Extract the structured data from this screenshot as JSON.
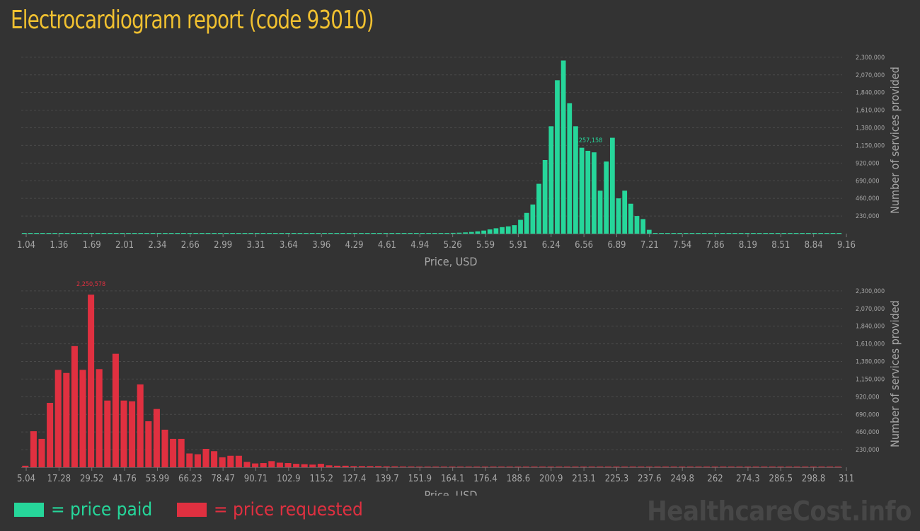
{
  "title": "Electrocardiogram report (code 93010)",
  "chart_data": [
    {
      "type": "bar",
      "color": "#26d69a",
      "xlabel": "Price, USD",
      "ylabel": "Number of services provided",
      "ylim": [
        0,
        2400000
      ],
      "y_ticks": [
        "230,000",
        "460,000",
        "690,000",
        "920,000",
        "1,150,000",
        "1,380,000",
        "1,610,000",
        "1,840,000",
        "2,070,000",
        "2,300,000"
      ],
      "x_ticks": [
        "1.04",
        "1.36",
        "1.69",
        "2.01",
        "2.34",
        "2.66",
        "2.99",
        "3.31",
        "3.64",
        "3.96",
        "4.29",
        "4.61",
        "4.94",
        "5.26",
        "5.59",
        "5.91",
        "6.24",
        "6.56",
        "6.89",
        "7.21",
        "7.54",
        "7.86",
        "8.19",
        "8.51",
        "8.84",
        "9.16"
      ],
      "peak_label": "2,257,158",
      "peak_index": 92,
      "values": [
        3000,
        3000,
        3000,
        3000,
        3000,
        3000,
        3000,
        3000,
        3000,
        3000,
        3000,
        3000,
        3000,
        3000,
        3000,
        3000,
        3000,
        3000,
        3000,
        3000,
        3000,
        3000,
        3000,
        3000,
        3000,
        3000,
        3000,
        3000,
        3000,
        3000,
        3000,
        3000,
        3000,
        3000,
        3000,
        3000,
        3000,
        3000,
        3000,
        3000,
        3000,
        3000,
        3000,
        3000,
        3000,
        3000,
        3000,
        3000,
        3000,
        3000,
        3000,
        3000,
        3000,
        3000,
        3000,
        3000,
        3000,
        3000,
        3000,
        3000,
        3000,
        3000,
        3000,
        3000,
        3000,
        4000,
        4000,
        5000,
        6000,
        8000,
        10000,
        12000,
        16000,
        22000,
        30000,
        40000,
        55000,
        70000,
        85000,
        95000,
        110000,
        180000,
        270000,
        380000,
        650000,
        960000,
        1400000,
        2000000,
        2257158,
        1700000,
        1400000,
        1120000,
        1080000,
        1060000,
        560000,
        940000,
        1250000,
        460000,
        560000,
        390000,
        230000,
        190000,
        50000,
        4000,
        3000,
        3000,
        3000,
        3000,
        3000,
        3000,
        3000,
        3000,
        3000,
        3000,
        3000,
        3000,
        3000,
        3000,
        3000,
        3000,
        3000,
        3000,
        3000,
        3000,
        3000,
        3000,
        3000,
        3000,
        3000,
        3000,
        3000,
        3000,
        3000,
        3000
      ]
    },
    {
      "type": "bar",
      "color": "#e03040",
      "xlabel": "Price, USD",
      "ylabel": "Number of services provided",
      "ylim": [
        0,
        2400000
      ],
      "y_ticks": [
        "230,000",
        "460,000",
        "690,000",
        "920,000",
        "1,150,000",
        "1,380,000",
        "1,610,000",
        "1,840,000",
        "2,070,000",
        "2,300,000"
      ],
      "x_ticks": [
        "5.04",
        "17.28",
        "29.52",
        "41.76",
        "53.99",
        "66.23",
        "78.47",
        "90.71",
        "102.9",
        "115.2",
        "127.4",
        "139.7",
        "151.9",
        "164.1",
        "176.4",
        "188.6",
        "200.9",
        "213.1",
        "225.3",
        "237.6",
        "249.8",
        "262",
        "274.3",
        "286.5",
        "298.8",
        "311"
      ],
      "peak_label": "2,250,578",
      "peak_index": 8,
      "values": [
        20000,
        470000,
        370000,
        840000,
        1270000,
        1230000,
        1580000,
        1270000,
        2250578,
        1280000,
        870000,
        1480000,
        870000,
        860000,
        1080000,
        600000,
        760000,
        490000,
        370000,
        370000,
        180000,
        170000,
        240000,
        210000,
        130000,
        150000,
        150000,
        70000,
        50000,
        55000,
        80000,
        60000,
        55000,
        45000,
        40000,
        35000,
        45000,
        25000,
        20000,
        20000,
        15000,
        15000,
        15000,
        15000,
        12000,
        12000,
        10000,
        10000,
        8000,
        8000,
        8000,
        8000,
        8000,
        8000,
        7000,
        7000,
        7000,
        7000,
        7000,
        7000,
        6000,
        6000,
        6000,
        6000,
        6000,
        6000,
        6000,
        6000,
        6000,
        6000,
        6000,
        6000,
        6000,
        6000,
        6000,
        6000,
        6000,
        6000,
        6000,
        6000,
        6000,
        6000,
        6000,
        6000,
        6000,
        6000,
        6000,
        6000,
        6000,
        6000,
        6000,
        6000,
        6000,
        6000,
        6000,
        6000,
        6000,
        6000,
        6000,
        6000
      ]
    }
  ],
  "legend": [
    {
      "label": "= price paid",
      "color": "#26d69a"
    },
    {
      "label": "= price requested",
      "color": "#e03040"
    }
  ],
  "watermark": "HealthcareCost.info"
}
